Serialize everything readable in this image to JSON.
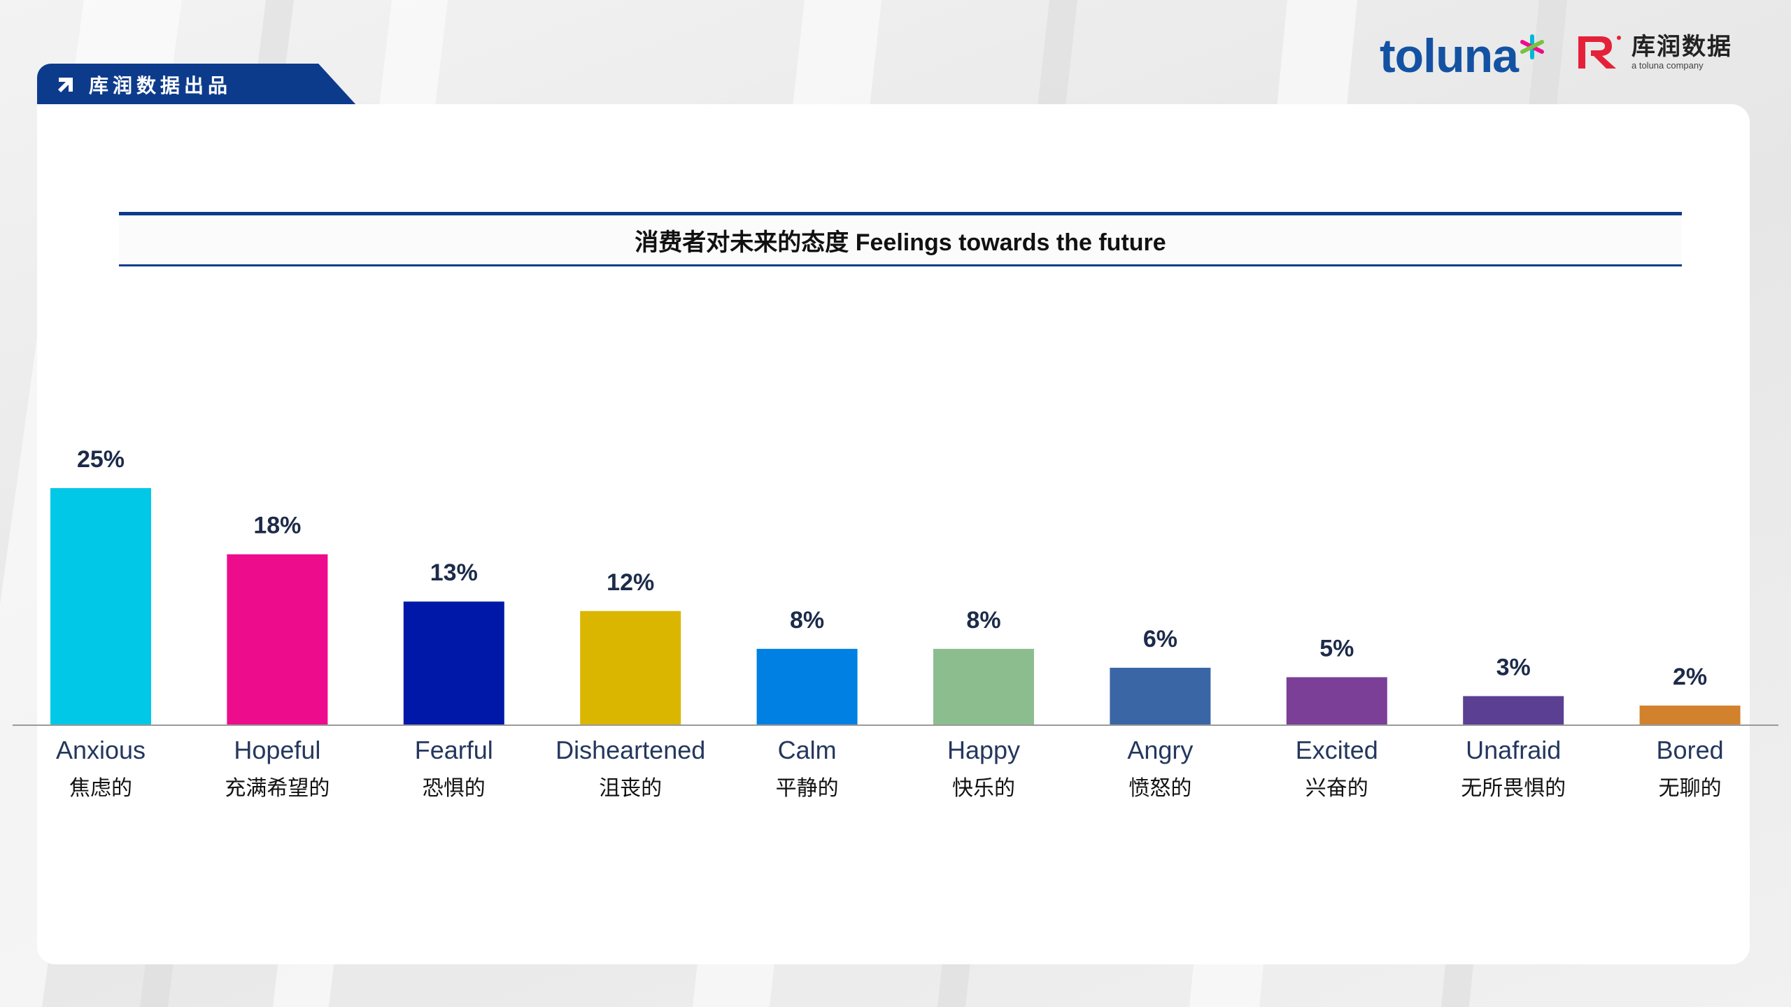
{
  "header": {
    "tab_label": "库润数据出品",
    "toluna_logo": "toluna",
    "kr_logo_name": "库润数据",
    "kr_logo_sub": "a toluna company"
  },
  "chart_data": {
    "type": "bar",
    "title": "消费者对未来的态度 Feelings towards the future",
    "categories": [
      "Anxious",
      "Hopeful",
      "Fearful",
      "Disheartened",
      "Calm",
      "Happy",
      "Angry",
      "Excited",
      "Unafraid",
      "Bored"
    ],
    "categories_zh": [
      "焦虑的",
      "充满希望的",
      "恐惧的",
      "沮丧的",
      "平静的",
      "快乐的",
      "愤怒的",
      "兴奋的",
      "无所畏惧的",
      "无聊的"
    ],
    "values": [
      25,
      18,
      13,
      12,
      8,
      8,
      6,
      5,
      3,
      2
    ],
    "value_labels": [
      "25%",
      "18%",
      "13%",
      "12%",
      "8%",
      "8%",
      "6%",
      "5%",
      "3%",
      "2%"
    ],
    "colors": [
      "#00c8e6",
      "#ec0c8c",
      "#0018a8",
      "#dbb600",
      "#0080e3",
      "#8cbd8f",
      "#3a66a6",
      "#7b3f97",
      "#5b3f93",
      "#d2822c"
    ],
    "xlabel": "",
    "ylabel": "",
    "ylim": [
      0,
      25
    ],
    "grid": false,
    "legend": "none"
  }
}
